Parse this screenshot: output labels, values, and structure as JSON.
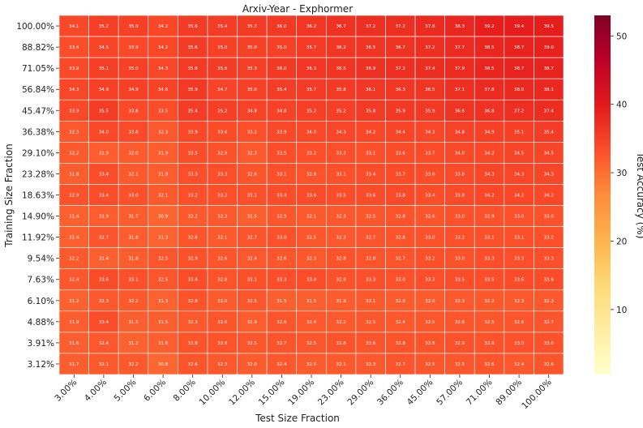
{
  "chart_data": {
    "type": "heatmap",
    "title": "Arxiv-Year - Exphormer",
    "xlabel": "Test Size Fraction",
    "ylabel": "Training Size Fraction",
    "colorbar_label": "Test Accuracy (%)",
    "colormap": "YlOrRd",
    "vmin": 0.5,
    "vmax": 53,
    "colorbar_ticks": [
      10,
      20,
      30,
      40,
      50
    ],
    "x_categories": [
      "3.00%",
      "4.00%",
      "5.00%",
      "6.00%",
      "8.00%",
      "10.00%",
      "12.00%",
      "15.00%",
      "19.00%",
      "23.00%",
      "29.00%",
      "36.00%",
      "45.00%",
      "57.00%",
      "71.00%",
      "89.00%",
      "100.00%"
    ],
    "y_categories": [
      "100.00%",
      "88.82%",
      "71.05%",
      "56.84%",
      "45.47%",
      "36.38%",
      "29.10%",
      "23.28%",
      "18.63%",
      "14.90%",
      "11.92%",
      "9.54%",
      "7.63%",
      "6.10%",
      "4.88%",
      "3.91%",
      "3.12%"
    ],
    "values": [
      [
        34.1,
        35.2,
        35.0,
        34.2,
        35.6,
        35.4,
        35.7,
        36.0,
        36.2,
        36.7,
        37.2,
        37.2,
        37.8,
        38.3,
        39.2,
        39.4,
        39.5
      ],
      [
        33.4,
        34.5,
        33.9,
        34.2,
        35.6,
        35.0,
        35.0,
        35.0,
        35.7,
        36.2,
        36.5,
        36.7,
        37.2,
        37.7,
        38.5,
        38.7,
        39.0
      ],
      [
        33.9,
        35.1,
        35.0,
        34.3,
        35.8,
        35.6,
        35.3,
        36.0,
        36.3,
        36.5,
        36.9,
        37.2,
        37.4,
        37.9,
        38.5,
        38.7,
        38.7
      ],
      [
        34.3,
        34.9,
        34.9,
        34.6,
        35.9,
        34.7,
        35.0,
        35.4,
        35.7,
        35.8,
        36.1,
        36.3,
        36.5,
        37.1,
        37.8,
        38.0,
        38.1
      ],
      [
        33.9,
        35.5,
        33.8,
        33.5,
        35.4,
        35.2,
        34.8,
        34.8,
        35.2,
        35.2,
        35.8,
        35.9,
        35.9,
        36.6,
        36.8,
        37.2,
        37.4
      ],
      [
        32.3,
        34.0,
        33.8,
        32.3,
        33.9,
        33.6,
        33.2,
        33.9,
        34.0,
        34.3,
        34.2,
        34.4,
        34.3,
        34.8,
        34.9,
        35.1,
        35.4
      ],
      [
        32.2,
        31.9,
        32.0,
        31.9,
        33.5,
        32.9,
        32.3,
        33.5,
        33.2,
        33.3,
        33.1,
        33.6,
        33.7,
        34.0,
        34.2,
        34.5,
        34.5
      ],
      [
        31.8,
        33.4,
        32.1,
        31.9,
        33.3,
        33.3,
        32.6,
        33.1,
        32.8,
        33.1,
        33.4,
        33.7,
        33.6,
        33.8,
        34.3,
        34.3,
        34.3
      ],
      [
        32.9,
        33.4,
        33.0,
        32.1,
        33.2,
        33.2,
        33.1,
        33.4,
        33.6,
        33.5,
        33.6,
        33.8,
        33.4,
        33.8,
        34.2,
        34.2,
        34.2
      ],
      [
        31.4,
        31.9,
        31.7,
        30.9,
        32.2,
        32.3,
        31.5,
        32.5,
        32.1,
        32.3,
        32.5,
        32.8,
        32.6,
        33.0,
        32.9,
        33.0,
        33.0
      ],
      [
        31.4,
        32.7,
        31.8,
        31.3,
        32.6,
        32.1,
        32.7,
        33.0,
        32.5,
        32.3,
        32.7,
        32.8,
        33.0,
        33.2,
        33.1,
        33.1,
        33.2
      ],
      [
        32.2,
        31.4,
        31.8,
        32.5,
        32.9,
        32.6,
        32.4,
        32.6,
        32.3,
        32.8,
        32.8,
        32.7,
        33.2,
        33.0,
        33.3,
        33.3,
        33.3
      ],
      [
        32.4,
        33.6,
        33.1,
        32.5,
        33.4,
        32.8,
        33.1,
        33.3,
        33.4,
        32.9,
        33.3,
        33.0,
        33.3,
        33.5,
        33.5,
        33.6,
        33.6
      ],
      [
        31.2,
        32.3,
        32.2,
        31.3,
        32.8,
        32.0,
        32.5,
        31.5,
        31.5,
        31.9,
        32.1,
        32.0,
        32.0,
        32.3,
        32.2,
        32.3,
        32.3
      ],
      [
        31.9,
        33.4,
        31.5,
        31.5,
        32.3,
        32.6,
        31.9,
        32.6,
        32.4,
        32.2,
        32.5,
        32.4,
        32.5,
        32.6,
        32.5,
        32.6,
        32.7
      ],
      [
        31.6,
        32.4,
        31.2,
        31.6,
        32.8,
        32.8,
        32.5,
        32.7,
        32.5,
        32.8,
        32.6,
        32.8,
        32.8,
        32.9,
        32.8,
        33.0,
        33.0
      ],
      [
        31.7,
        32.1,
        32.2,
        30.8,
        32.6,
        32.3,
        32.0,
        32.4,
        32.0,
        32.1,
        32.3,
        32.7,
        32.5,
        32.5,
        32.6,
        32.4,
        32.6
      ]
    ]
  }
}
